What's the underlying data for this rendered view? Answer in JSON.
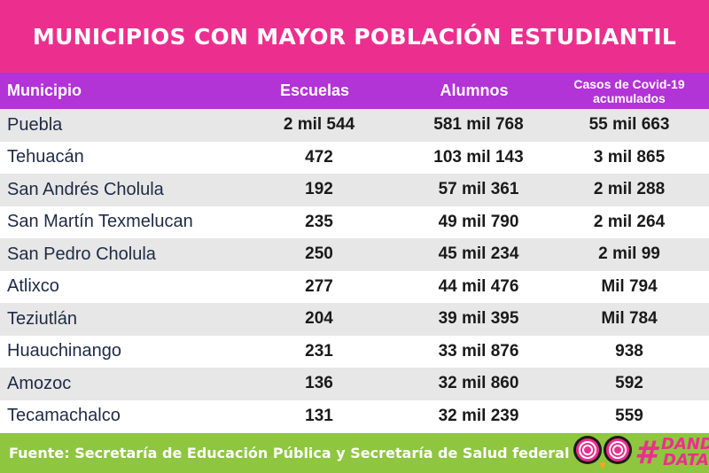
{
  "title": "MUNICIPIOS CON MAYOR POBLACIÓN ESTUDIANTIL",
  "chart_data": {
    "type": "table",
    "columns": [
      "Municipio",
      "Escuelas",
      "Alumnos",
      "Casos de Covid-19 acumulados"
    ],
    "rows": [
      [
        "Puebla",
        "2 mil 544",
        "581 mil 768",
        "55 mil 663"
      ],
      [
        "Tehuacán",
        "472",
        "103 mil 143",
        "3 mil 865"
      ],
      [
        "San Andrés Cholula",
        "192",
        "57 mil 361",
        "2 mil 288"
      ],
      [
        "San Martín Texmelucan",
        "235",
        "49 mil 790",
        "2 mil 264"
      ],
      [
        "San Pedro Cholula",
        "250",
        "45 mil 234",
        "2 mil 99"
      ],
      [
        "Atlixco",
        "277",
        "44 mil 476",
        "Mil 794"
      ],
      [
        "Teziutlán",
        "204",
        "39 mil 395",
        "Mil 784"
      ],
      [
        "Huauchinango",
        "231",
        "33 mil 876",
        "938"
      ],
      [
        "Amozoc",
        "136",
        "32 mil 860",
        "592"
      ],
      [
        "Tecamachalco",
        "131",
        "32 mil 239",
        "559"
      ]
    ]
  },
  "source": "Fuente: Secretaría de Educación Pública y Secretaría de Salud federal",
  "logo": {
    "hash": "#",
    "word1": "DANDO",
    "word2": "DATA",
    "icon": "owl-eyes-icon"
  },
  "colors": {
    "title_bg": "#ec2f8e",
    "header_bg": "#b233d6",
    "row_alt": "#e7e7e7",
    "footer_bg": "#8ec63f"
  }
}
